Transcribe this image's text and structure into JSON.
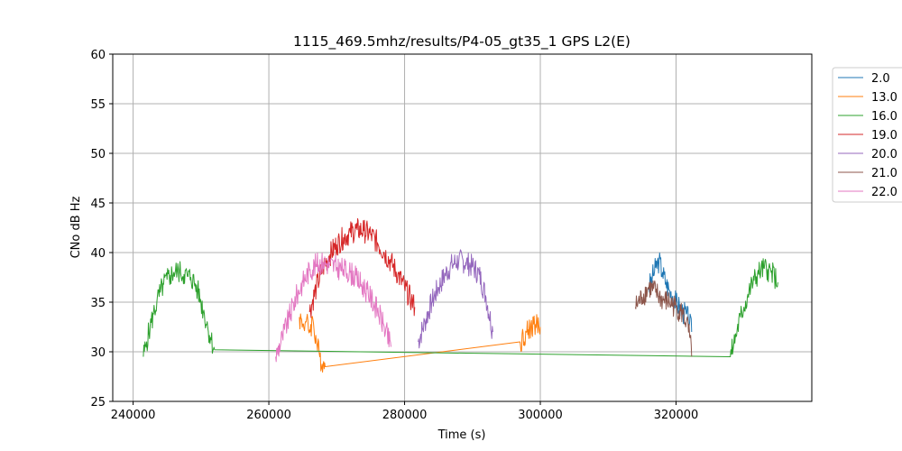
{
  "chart_data": {
    "type": "line",
    "title": "1115_469.5mhz/results/P4-05_gt35_1 GPS L2(E)",
    "xlabel": "Time (s)",
    "ylabel": "CNo dB Hz",
    "xlim": [
      237000,
      340000
    ],
    "ylim": [
      25,
      60
    ],
    "xticks": [
      240000,
      260000,
      280000,
      300000,
      320000
    ],
    "yticks": [
      25,
      30,
      35,
      40,
      45,
      50,
      55,
      60
    ],
    "grid": true,
    "legend_position": "outside-right-top",
    "series": [
      {
        "name": "2.0",
        "color": "#1f77b4",
        "x": [
          316000,
          316500,
          317000,
          317500,
          318000,
          318500,
          319000,
          319500,
          320000,
          320500,
          321000,
          321500,
          322000,
          322300
        ],
        "y": [
          36.5,
          37.5,
          38.5,
          39.2,
          38.0,
          37.0,
          36.2,
          35.6,
          35.0,
          34.5,
          34.0,
          33.8,
          33.0,
          32.0
        ]
      },
      {
        "name": "13.0",
        "color": "#ff7f0e",
        "x": [
          264500,
          265000,
          265500,
          266000,
          266500,
          267000,
          267500,
          268000,
          268300,
          297000,
          298000,
          299000,
          300000
        ],
        "y": [
          33.5,
          32.8,
          33.0,
          32.2,
          33.2,
          31.0,
          29.5,
          28.8,
          28.5,
          31.0,
          32.0,
          32.8,
          32.5
        ]
      },
      {
        "name": "16.0",
        "color": "#2ca02c",
        "x": [
          241500,
          242000,
          242500,
          243000,
          243500,
          244000,
          244500,
          245000,
          245500,
          246000,
          246500,
          247000,
          247500,
          248000,
          248500,
          249000,
          249500,
          250000,
          250500,
          251000,
          251500,
          252000,
          328000,
          328500,
          329000,
          329500,
          330000,
          330500,
          331000,
          331500,
          332000,
          332500,
          333000,
          333500,
          334000,
          334500,
          335000
        ],
        "y": [
          29.5,
          31.0,
          32.5,
          33.8,
          35.0,
          36.0,
          36.8,
          37.3,
          37.7,
          38.0,
          38.1,
          38.0,
          37.8,
          37.6,
          37.5,
          37.0,
          36.2,
          35.0,
          33.8,
          32.5,
          31.2,
          30.2,
          29.5,
          30.8,
          32.2,
          33.5,
          34.5,
          35.5,
          36.5,
          37.2,
          37.8,
          38.2,
          38.4,
          38.3,
          38.0,
          37.6,
          37.0
        ]
      },
      {
        "name": "19.0",
        "color": "#d62728",
        "x": [
          266000,
          267000,
          268000,
          269000,
          270000,
          271000,
          272000,
          273000,
          274000,
          275000,
          276000,
          277000,
          278000,
          279000,
          280000,
          281000,
          281500
        ],
        "y": [
          34.0,
          36.5,
          38.5,
          39.8,
          40.8,
          41.5,
          42.0,
          42.3,
          42.2,
          41.8,
          41.0,
          40.0,
          39.0,
          37.8,
          36.5,
          35.2,
          34.5
        ]
      },
      {
        "name": "20.0",
        "color": "#9467bd",
        "x": [
          282000,
          283000,
          284000,
          285000,
          286000,
          287000,
          288000,
          289000,
          290000,
          291000,
          292000,
          293000
        ],
        "y": [
          31.0,
          33.0,
          35.0,
          36.5,
          37.8,
          38.8,
          39.2,
          39.0,
          38.6,
          37.8,
          35.5,
          32.0
        ]
      },
      {
        "name": "21.0",
        "color": "#8c564b",
        "x": [
          314000,
          315000,
          316000,
          317000,
          318000,
          319000,
          320000,
          321000,
          321500,
          322000,
          322300
        ],
        "y": [
          34.5,
          35.5,
          36.5,
          36.0,
          35.2,
          35.0,
          34.5,
          33.8,
          33.0,
          31.5,
          29.5
        ]
      },
      {
        "name": "22.0",
        "color": "#e377c2",
        "x": [
          261000,
          262000,
          263000,
          264000,
          265000,
          266000,
          267000,
          268000,
          269000,
          270000,
          271000,
          272000,
          273000,
          274000,
          275000,
          276000,
          277000,
          278000
        ],
        "y": [
          29.5,
          31.5,
          33.5,
          35.5,
          37.0,
          38.2,
          38.8,
          39.0,
          38.8,
          38.5,
          38.3,
          38.0,
          37.3,
          36.5,
          35.5,
          34.2,
          32.5,
          30.5
        ]
      }
    ]
  }
}
